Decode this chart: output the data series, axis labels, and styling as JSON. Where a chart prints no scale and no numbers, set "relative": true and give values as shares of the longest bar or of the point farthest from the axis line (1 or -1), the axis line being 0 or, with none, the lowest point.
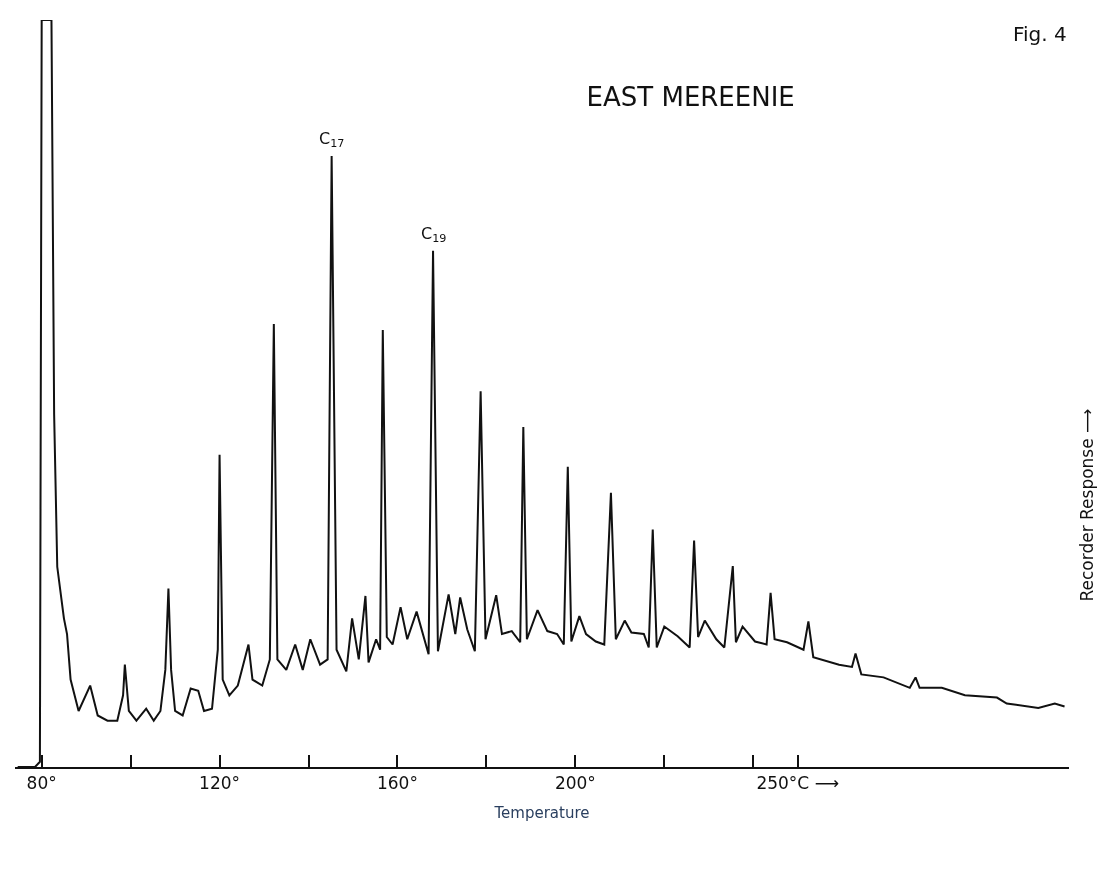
{
  "chart_data": {
    "type": "line",
    "title": "EAST MEREENIE",
    "xlabel": "Temperature",
    "ylabel": "Recorder Response ⟶",
    "relative": true,
    "annotations": [
      "Fig. 4",
      {
        "text": "C$_{17}$",
        "x": 145.2,
        "y": 0.818
      },
      {
        "text": "C$_{19}$",
        "x": 168.0,
        "y": 0.691
      }
    ],
    "xlim": [
      74,
      311
    ],
    "xticks": [
      {
        "value": 80,
        "label": "80°"
      },
      {
        "value": 100,
        "label": null
      },
      {
        "value": 120,
        "label": "120°"
      },
      {
        "value": 140,
        "label": null
      },
      {
        "value": 160,
        "label": "160°"
      },
      {
        "value": 180,
        "label": null
      },
      {
        "value": 200,
        "label": "200°"
      },
      {
        "value": 220,
        "label": null
      },
      {
        "value": 240,
        "label": null
      },
      {
        "value": 250,
        "label": "250°C ⟶"
      }
    ],
    "tick_labels": "x",
    "legend": false,
    "marker": "none",
    "line_style": "solid",
    "series": [
      {
        "color": "#111111",
        "x": [
          74.6,
          78.5,
          79.6,
          80.0,
          80.7,
          82.2,
          82.8,
          83.5,
          85.0,
          85.7,
          86.5,
          88.3,
          90.9,
          92.6,
          94.8,
          97.0,
          98.3,
          98.7,
          99.6,
          101.3,
          103.5,
          105.2,
          106.7,
          107.8,
          108.5,
          109.1,
          110.0,
          111.7,
          113.5,
          115.2,
          116.5,
          118.3,
          119.6,
          120.0,
          120.7,
          122.2,
          124.1,
          126.5,
          127.4,
          129.6,
          131.3,
          132.2,
          133.0,
          135.0,
          137.0,
          138.7,
          140.4,
          142.6,
          144.3,
          145.2,
          146.3,
          148.5,
          149.8,
          151.3,
          152.8,
          153.5,
          155.2,
          156.1,
          156.7,
          157.6,
          158.9,
          160.7,
          162.2,
          164.3,
          167.0,
          168.0,
          169.1,
          171.5,
          173.0,
          174.1,
          175.7,
          177.4,
          178.7,
          179.8,
          182.2,
          183.5,
          185.7,
          187.6,
          188.3,
          189.1,
          191.5,
          193.7,
          195.9,
          197.4,
          198.3,
          199.1,
          200.9,
          202.4,
          204.6,
          206.5,
          208.0,
          209.1,
          211.1,
          212.6,
          215.4,
          216.5,
          217.4,
          218.3,
          220.0,
          223.0,
          225.7,
          226.7,
          227.6,
          229.1,
          231.7,
          233.5,
          235.4,
          236.1,
          237.6,
          240.4,
          243.0,
          243.9,
          244.8,
          247.6,
          251.3,
          252.4,
          253.5,
          259.3,
          262.2,
          263.0,
          264.3,
          269.3,
          275.2,
          276.5,
          277.4,
          282.4,
          287.6,
          294.8,
          297.0,
          304.1,
          307.8,
          310.0
        ],
        "values": [
          0,
          0,
          0.007,
          1,
          1,
          1,
          0.472,
          0.268,
          0.199,
          0.178,
          0.117,
          0.075,
          0.109,
          0.069,
          0.062,
          0.062,
          0.096,
          0.137,
          0.075,
          0.062,
          0.078,
          0.062,
          0.075,
          0.13,
          0.239,
          0.13,
          0.075,
          0.069,
          0.105,
          0.102,
          0.075,
          0.078,
          0.157,
          0.418,
          0.117,
          0.096,
          0.109,
          0.164,
          0.117,
          0.109,
          0.144,
          0.593,
          0.144,
          0.13,
          0.164,
          0.13,
          0.171,
          0.137,
          0.144,
          0.818,
          0.157,
          0.128,
          0.199,
          0.144,
          0.229,
          0.14,
          0.171,
          0.157,
          0.585,
          0.174,
          0.164,
          0.214,
          0.171,
          0.208,
          0.151,
          0.691,
          0.155,
          0.231,
          0.178,
          0.227,
          0.184,
          0.155,
          0.503,
          0.171,
          0.23,
          0.178,
          0.182,
          0.167,
          0.455,
          0.171,
          0.21,
          0.182,
          0.178,
          0.164,
          0.402,
          0.168,
          0.202,
          0.178,
          0.168,
          0.164,
          0.367,
          0.171,
          0.196,
          0.18,
          0.178,
          0.16,
          0.318,
          0.16,
          0.188,
          0.175,
          0.16,
          0.303,
          0.174,
          0.196,
          0.171,
          0.16,
          0.269,
          0.167,
          0.188,
          0.168,
          0.164,
          0.233,
          0.171,
          0.167,
          0.157,
          0.195,
          0.147,
          0.137,
          0.134,
          0.152,
          0.124,
          0.12,
          0.106,
          0.12,
          0.106,
          0.106,
          0.096,
          0.093,
          0.085,
          0.079,
          0.085,
          0.081
        ]
      }
    ]
  }
}
